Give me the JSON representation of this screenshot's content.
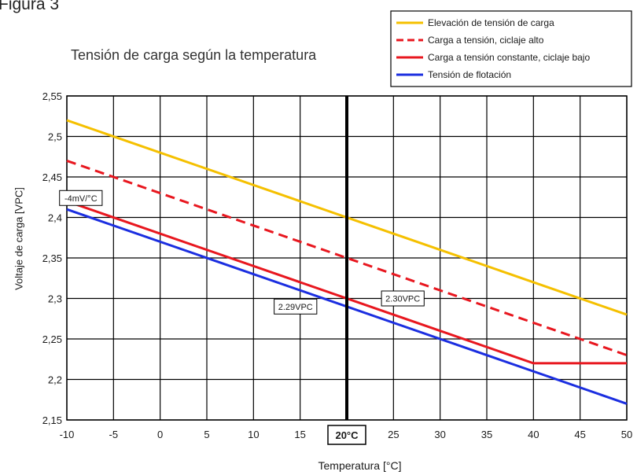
{
  "figure_label": "Figura 3",
  "chart_data": {
    "type": "line",
    "title": "Tensión de carga según la temperatura",
    "xlabel": "Temperatura [°C]",
    "ylabel": "Voltaje de carga [VPC]",
    "xlim": [
      -10,
      50
    ],
    "ylim": [
      2.15,
      2.55
    ],
    "x_ticks": [
      -10,
      -5,
      0,
      5,
      10,
      15,
      20,
      25,
      30,
      35,
      40,
      45,
      50
    ],
    "x_tick_labels": [
      "-10",
      "-5",
      "0",
      "5",
      "10",
      "15",
      "20°C",
      "25",
      "30",
      "35",
      "40",
      "45",
      "50"
    ],
    "y_ticks": [
      2.15,
      2.2,
      2.25,
      2.3,
      2.35,
      2.4,
      2.45,
      2.5,
      2.55
    ],
    "y_tick_labels": [
      "2,15",
      "2,2",
      "2,25",
      "2,3",
      "2,35",
      "2,4",
      "2,45",
      "2,5",
      "2,55"
    ],
    "grid": true,
    "legend_position": "top-right",
    "reference_line_x": 20,
    "series": [
      {
        "name": "Elevación de tensión de carga",
        "color": "#f5c000",
        "dash": "solid",
        "x": [
          -10,
          50
        ],
        "y": [
          2.52,
          2.28
        ]
      },
      {
        "name": "Carga a tensión, ciclaje alto",
        "color": "#e8171f",
        "dash": "dashed",
        "x": [
          -10,
          50
        ],
        "y": [
          2.47,
          2.23
        ]
      },
      {
        "name": "Carga a tensión constante, ciclaje bajo",
        "color": "#e8171f",
        "dash": "solid",
        "x": [
          -10,
          40,
          50
        ],
        "y": [
          2.42,
          2.22,
          2.22
        ]
      },
      {
        "name": "Tensión de flotación",
        "color": "#1b2ee0",
        "dash": "solid",
        "x": [
          -10,
          50
        ],
        "y": [
          2.41,
          2.17
        ]
      }
    ],
    "annotations": [
      {
        "text": "-4mV/°C",
        "x": -8.5,
        "y": 2.424
      },
      {
        "text": "2.29VPC",
        "x": 14.5,
        "y": 2.29
      },
      {
        "text": "2.30VPC",
        "x": 26,
        "y": 2.3
      }
    ]
  }
}
